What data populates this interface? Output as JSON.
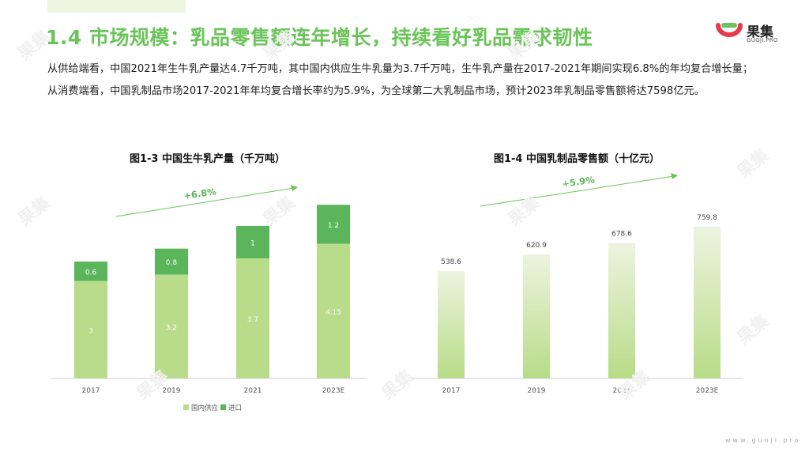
{
  "title": "1.4 市场规模：乳品零售额连年增长，持续看好乳品需求韧性",
  "logo": {
    "name": "果集",
    "sub": "GUOJI.PRO"
  },
  "description": "从供给端看，中国2021年生牛乳产量达4.7千万吨，其中国内供应生牛乳量为3.7千万吨，生牛乳产量在2017-2021年期间实现6.8%的年均复合增长量；从消费端看，中国乳制品市场2017-2021年年均复合增长率约为5.9%，为全球第二大乳制品市场，预计2023年乳制品零售额将达7598亿元。",
  "footer_url": "www.guoji.pro",
  "watermark": "果集",
  "colors": {
    "accent": "#6bc45a",
    "domestic": "#b8dc8a",
    "import": "#5bb55a"
  },
  "chart_data": [
    {
      "type": "bar",
      "stacked": true,
      "title": "图1-3 中国生牛乳产量（千万吨）",
      "categories": [
        "2017",
        "2019",
        "2021",
        "2023E"
      ],
      "series": [
        {
          "name": "国内供应",
          "values": [
            3,
            3.2,
            3.7,
            4.15
          ],
          "labels": [
            "3",
            "3.2",
            "3.7",
            "4.15"
          ]
        },
        {
          "name": "进口",
          "values": [
            0.6,
            0.8,
            1,
            1.2
          ],
          "labels": [
            "0.6",
            "0.8",
            "1",
            "1.2"
          ]
        }
      ],
      "growth_annotation": "+6.8%",
      "legend_position": "bottom",
      "ylim": [
        0,
        5.6
      ]
    },
    {
      "type": "bar",
      "title": "图1-4 中国乳制品零售额（十亿元）",
      "categories": [
        "2017",
        "2019",
        "2021",
        "2023E"
      ],
      "values": [
        538.6,
        620.9,
        678.6,
        759.8
      ],
      "labels": [
        "538.6",
        "620.9",
        "678.6",
        "759.8"
      ],
      "growth_annotation": "+5.9%",
      "ylim": [
        0,
        910
      ]
    }
  ]
}
